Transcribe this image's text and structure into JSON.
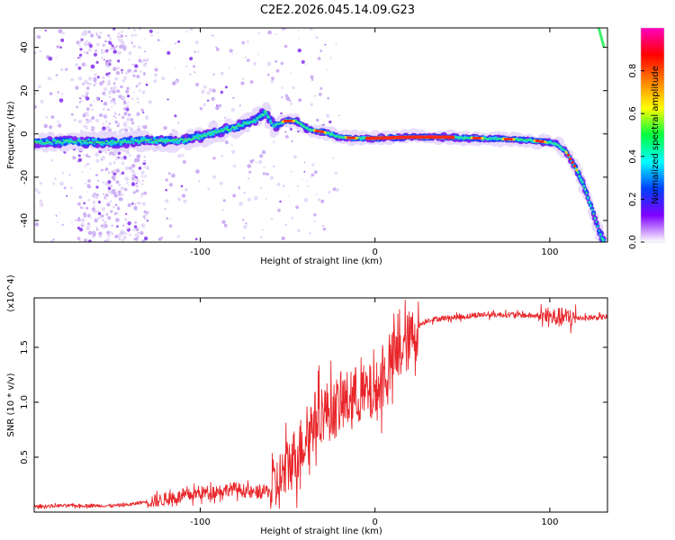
{
  "figure_title": "C2E2.2026.045.14.09.G23",
  "chart_data": [
    {
      "type": "heatmap",
      "name": "spectrogram",
      "xlabel": "Height of straight line (km)",
      "ylabel": "Frequency (Hz)",
      "xlim": [
        -195,
        133
      ],
      "ylim": [
        -50,
        49
      ],
      "xticks": [
        -100,
        0,
        100
      ],
      "xtick_labels": [
        "-100",
        "0",
        "100"
      ],
      "yticks": [
        -40,
        -20,
        0,
        20,
        40
      ],
      "ytick_labels": [
        "-40",
        "-20",
        "0",
        "20",
        "40"
      ],
      "ridge": {
        "x": [
          -195,
          -170,
          -150,
          -130,
          -110,
          -95,
          -80,
          -70,
          -62,
          -58,
          -52,
          -45,
          -38,
          -30,
          -20,
          -10,
          0,
          20,
          40,
          60,
          80,
          90,
          100,
          105,
          110,
          115,
          120,
          125,
          128,
          130
        ],
        "y": [
          -4,
          -3.5,
          -4,
          -3,
          -3,
          0,
          3,
          6,
          10,
          3,
          6,
          6,
          2,
          1,
          -1.5,
          -2,
          -2,
          -1.5,
          -1.5,
          -2,
          -2.5,
          -3,
          -4,
          -5,
          -9,
          -16,
          -25,
          -37,
          -44,
          -49
        ]
      },
      "colorbar": {
        "label": "Normalized spectral amplitude",
        "range": [
          0,
          1
        ],
        "ticks": [
          0.0,
          0.2,
          0.4,
          0.6,
          0.8
        ],
        "tick_labels": [
          "0.0",
          "0.2",
          "0.4",
          "0.6",
          "0.8"
        ],
        "colormap": [
          "#ffffff",
          "#8000ff",
          "#0040ff",
          "#00ffff",
          "#00ff40",
          "#ffff00",
          "#ff8000",
          "#ff0000",
          "#ff00c0"
        ]
      }
    },
    {
      "type": "line",
      "name": "snr",
      "xlabel": "Height of straight line (km)",
      "ylabel": "SNR (10 * v/v)",
      "y_scale_label": "(x10^4)",
      "xlim": [
        -195,
        133
      ],
      "ylim": [
        0,
        1.95
      ],
      "xticks": [
        -100,
        0,
        100
      ],
      "xtick_labels": [
        "-100",
        "0",
        "100"
      ],
      "yticks": [
        0.5,
        1.0,
        1.5
      ],
      "ytick_labels": [
        "0.5",
        "1.0",
        "1.5"
      ],
      "line_color": "#e8262a",
      "series": [
        {
          "name": "SNR",
          "x": [
            -195,
            -180,
            -165,
            -150,
            -140,
            -130,
            -120,
            -110,
            -100,
            -90,
            -80,
            -70,
            -60,
            -55,
            -50,
            -45,
            -40,
            -35,
            -30,
            -25,
            -20,
            -15,
            -10,
            -5,
            0,
            5,
            10,
            15,
            20,
            25,
            30,
            40,
            50,
            60,
            70,
            80,
            90,
            100,
            110,
            120,
            133
          ],
          "y": [
            0.05,
            0.06,
            0.06,
            0.06,
            0.07,
            0.1,
            0.12,
            0.15,
            0.18,
            0.2,
            0.22,
            0.18,
            0.2,
            0.3,
            0.45,
            0.55,
            0.7,
            0.85,
            0.95,
            0.95,
            1.0,
            1.05,
            1.1,
            1.1,
            1.1,
            1.25,
            1.4,
            1.5,
            1.6,
            1.7,
            1.75,
            1.77,
            1.78,
            1.8,
            1.8,
            1.8,
            1.79,
            1.78,
            1.78,
            1.77,
            1.78
          ]
        }
      ]
    }
  ]
}
